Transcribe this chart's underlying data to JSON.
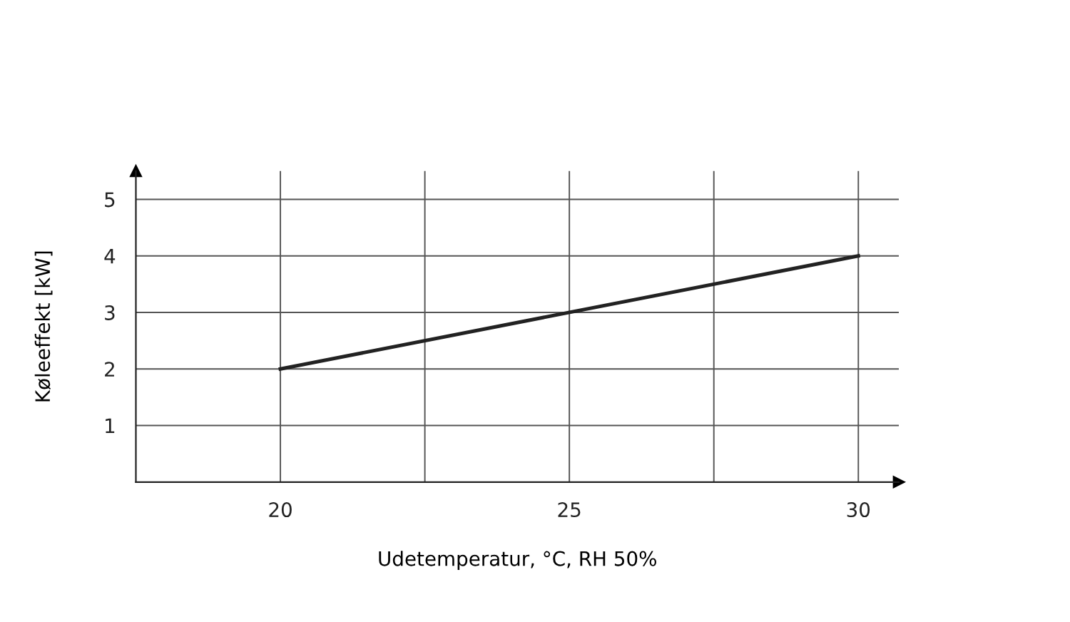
{
  "chart_data": {
    "type": "line",
    "xlabel": "Udetemperatur, °C, RH 50%",
    "ylabel": "Køleeffekt [kW]",
    "x": [
      20,
      30
    ],
    "series": [
      {
        "color": "#222222",
        "values": [
          2,
          4
        ]
      }
    ],
    "xlim": [
      17.5,
      30.7
    ],
    "ylim": [
      0,
      5.5
    ],
    "xticks": [
      20,
      {
        "value": 22.5,
        "label": null
      },
      25,
      {
        "value": 27.5,
        "label": null
      },
      30
    ],
    "yticks": [
      1,
      2,
      3,
      4,
      5
    ],
    "grid": true,
    "line_style": "solid",
    "marker": "none"
  }
}
